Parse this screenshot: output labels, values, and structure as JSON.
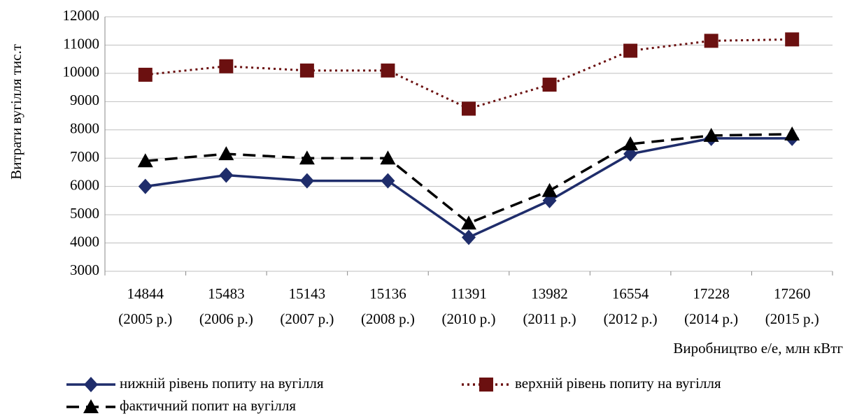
{
  "chart_data": {
    "type": "line",
    "y_label": "Витрати вугілля тис.т",
    "x_label": "Виробництво е/е, млн кВтг",
    "categories": [
      [
        "14844",
        "(2005 р.)"
      ],
      [
        "15483",
        "(2006 р.)"
      ],
      [
        "15143",
        "(2007 р.)"
      ],
      [
        "15136",
        "(2008 р.)"
      ],
      [
        "11391",
        "(2010 р.)"
      ],
      [
        "13982",
        "(2011 р.)"
      ],
      [
        "16554",
        "(2012 р.)"
      ],
      [
        "17228",
        "(2014 р.)"
      ],
      [
        "17260",
        "(2015 р.)"
      ]
    ],
    "series": [
      {
        "name": "нижній рівень попиту на вугілля",
        "color": "#1f2d6b",
        "marker": "diamond",
        "dash": "solid",
        "values": [
          6000,
          6400,
          6200,
          6200,
          4200,
          5500,
          7150,
          7700,
          7700
        ]
      },
      {
        "name": "верхній рівень попиту на вугілля",
        "color": "#6b1010",
        "marker": "square",
        "dash": "dotted",
        "values": [
          9950,
          10250,
          10100,
          10100,
          8750,
          9600,
          10800,
          11150,
          11200
        ]
      },
      {
        "name": "фактичний попит на вугілля",
        "color": "#000000",
        "marker": "triangle",
        "dash": "dashed",
        "values": [
          6900,
          7150,
          7000,
          7000,
          4700,
          5850,
          7500,
          7800,
          7850
        ]
      }
    ],
    "ylim": [
      3000,
      12000
    ],
    "yticks": [
      3000,
      4000,
      5000,
      6000,
      7000,
      8000,
      9000,
      10000,
      11000,
      12000
    ],
    "grid": true,
    "legend": "bottom"
  }
}
